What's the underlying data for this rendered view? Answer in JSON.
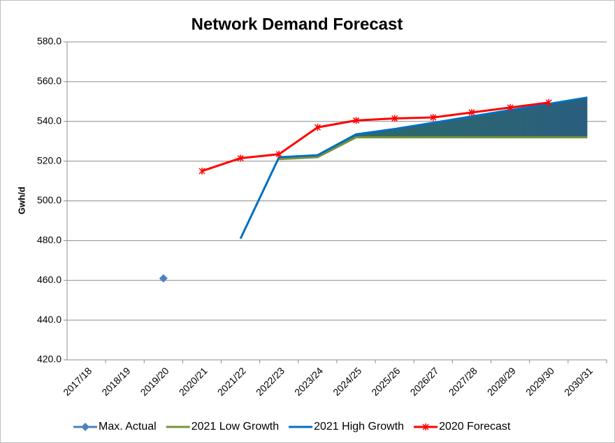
{
  "chart_data": {
    "type": "line",
    "title": "Network Demand Forecast",
    "y_label": "Gwh/d",
    "categories": [
      "2017/18",
      "2018/19",
      "2019/20",
      "2020/21",
      "2021/22",
      "2022/23",
      "2023/24",
      "2024/25",
      "2025/26",
      "2026/27",
      "2027/28",
      "2028/29",
      "2029/30",
      "2030/31"
    ],
    "ylim": [
      420,
      580
    ],
    "yticks": [
      {
        "value": 420,
        "label": "420.0"
      },
      {
        "value": 440,
        "label": "440.0"
      },
      {
        "value": 460,
        "label": "460.0"
      },
      {
        "value": 480,
        "label": "480.0"
      },
      {
        "value": 500,
        "label": "500.0"
      },
      {
        "value": 520,
        "label": "520.0"
      },
      {
        "value": 540,
        "label": "540.0"
      },
      {
        "value": 560,
        "label": "560.0"
      },
      {
        "value": 580,
        "label": "580.0"
      }
    ],
    "grid": true,
    "legend": "bottom",
    "series": [
      {
        "name": "Max. Actual",
        "color": "#4f81bd",
        "marker": "diamond",
        "line": false,
        "values": [
          null,
          null,
          461,
          null,
          null,
          null,
          null,
          null,
          null,
          null,
          null,
          null,
          null,
          null
        ]
      },
      {
        "name": "2021 Low Growth",
        "color": "#77933c",
        "marker": "none",
        "line": true,
        "values": [
          null,
          null,
          null,
          null,
          null,
          521,
          522,
          532,
          532,
          532,
          532,
          532,
          532,
          532
        ]
      },
      {
        "name": "2021 High Growth",
        "color": "#0070c0",
        "marker": "none",
        "line": true,
        "values": [
          null,
          null,
          null,
          null,
          481,
          522,
          523,
          533.5,
          536.2,
          539.3,
          542.5,
          545.7,
          548.8,
          552
        ]
      },
      {
        "name": "2020 Forecast",
        "color": "#ff0000",
        "marker": "asterisk",
        "line": true,
        "values": [
          null,
          null,
          null,
          515,
          521.5,
          523.5,
          537,
          540.5,
          541.5,
          542,
          544.5,
          547,
          549.5,
          null
        ]
      }
    ]
  }
}
